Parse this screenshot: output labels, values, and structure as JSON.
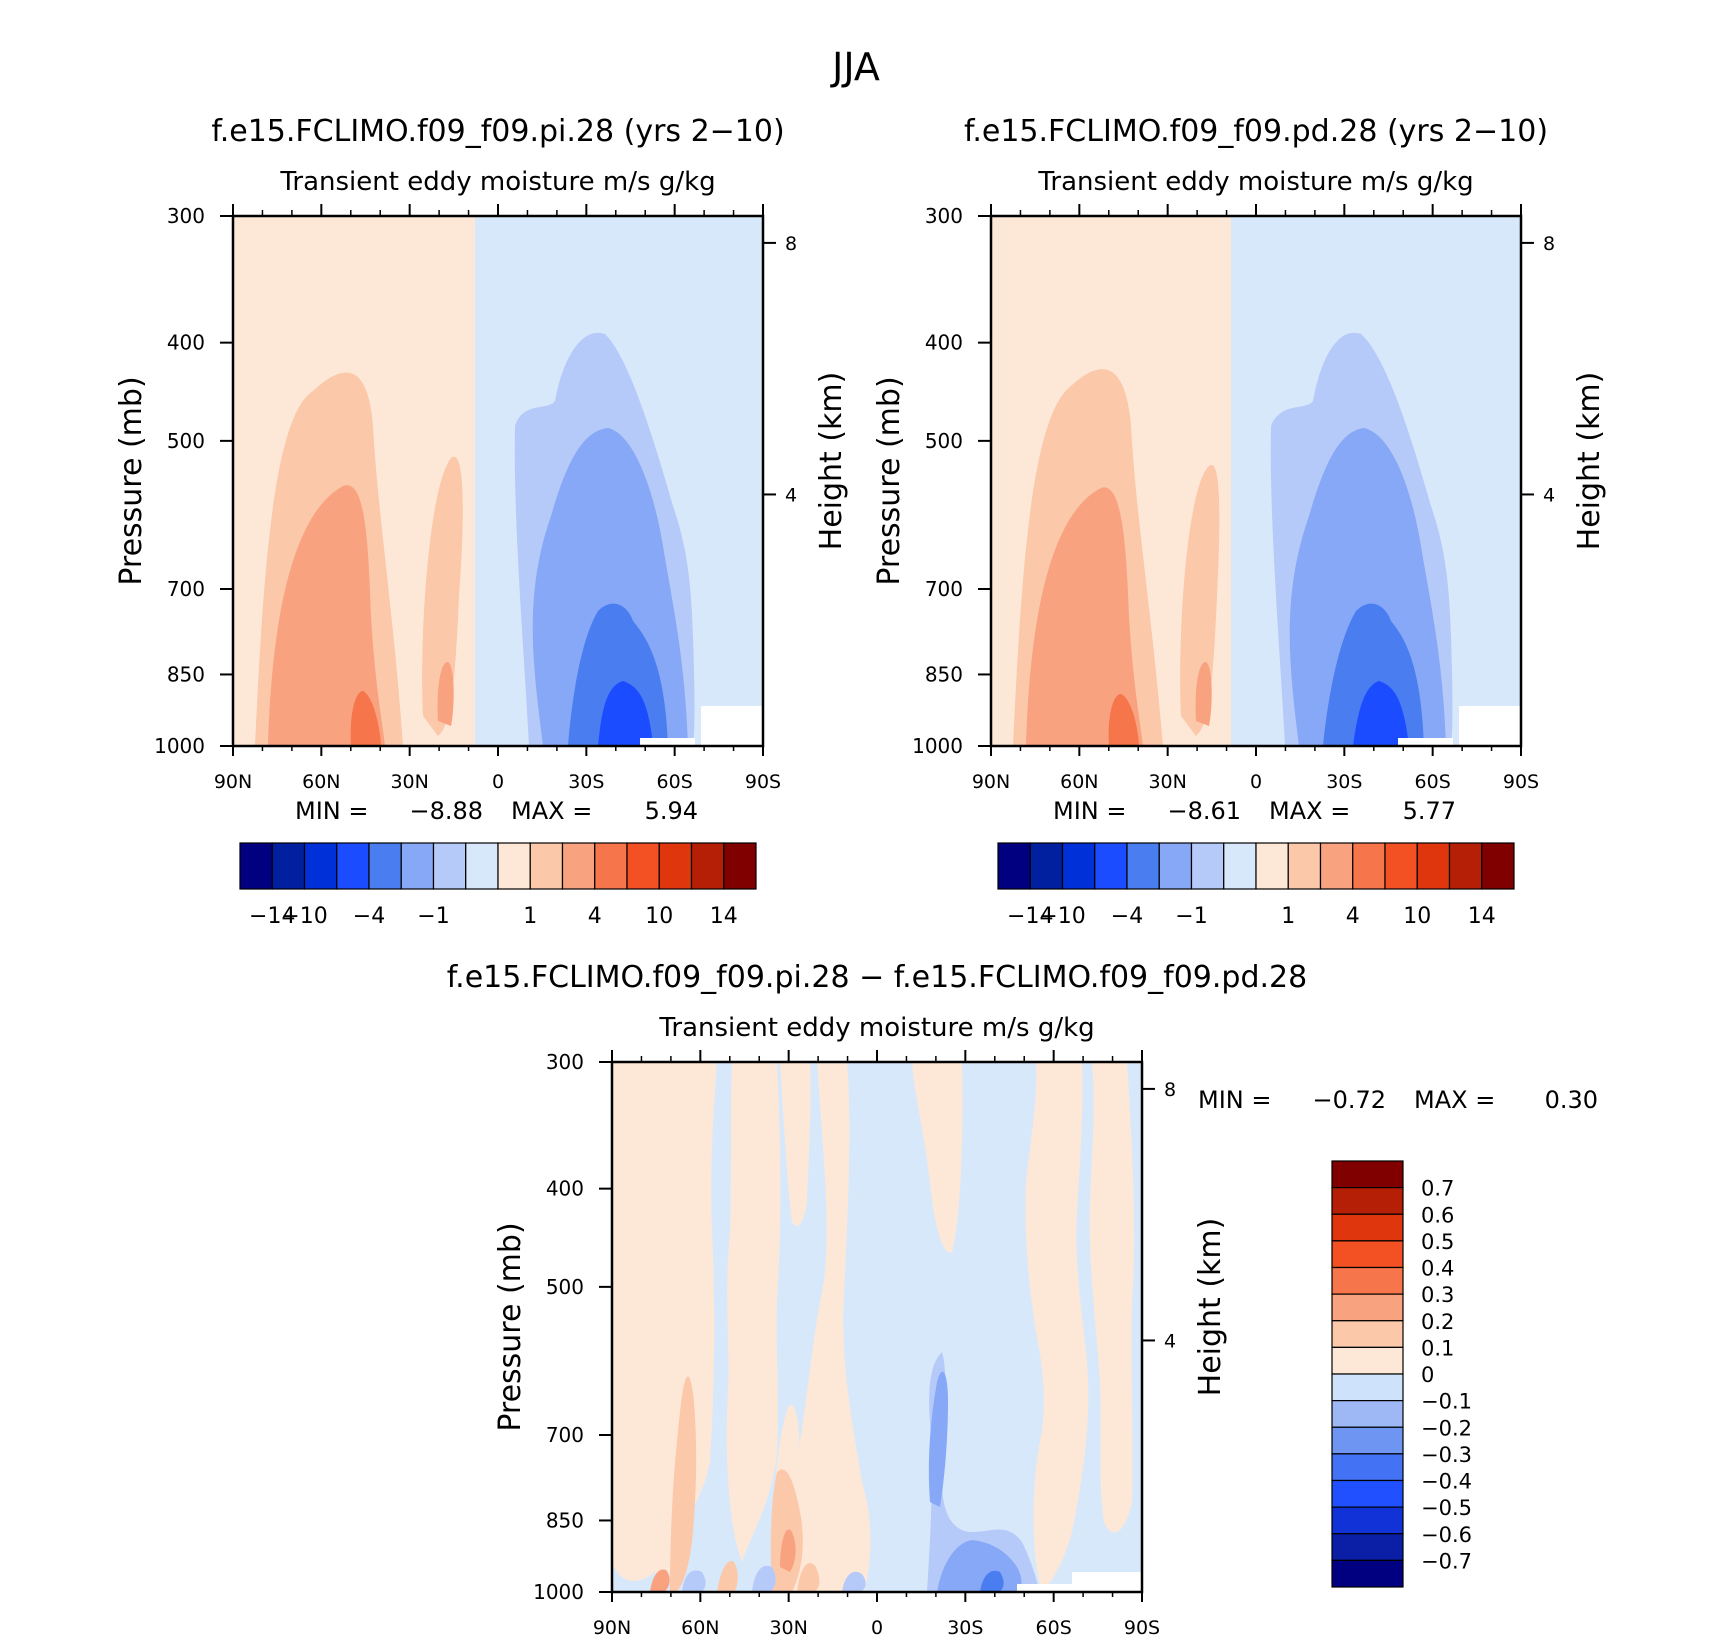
{
  "figure": {
    "title": "JJA"
  },
  "colors": {
    "main_scale": [
      "#000080",
      "#0020a0",
      "#0030d8",
      "#1c4cff",
      "#4a7df0",
      "#86a8f6",
      "#b6caf9",
      "#d8e8fb",
      "#fde8d8",
      "#fbc8aa",
      "#f8a280",
      "#f6754a",
      "#f35124",
      "#e0360e",
      "#b51f06",
      "#800000"
    ],
    "diff_scale": [
      "#000080",
      "#0a1ea6",
      "#1032d6",
      "#2050ff",
      "#4472f4",
      "#6d95f1",
      "#9eb8f5",
      "#cfe2fb",
      "#fde8d8",
      "#fbc8aa",
      "#f8a280",
      "#f6754a",
      "#f35124",
      "#e0360e",
      "#b51f06",
      "#800000"
    ]
  },
  "chart_data": [
    {
      "type": "heatmap",
      "title": "f.e15.FCLIMO.f09_f09.pi.28 (yrs 2−10)",
      "subtitle": "Transient eddy moisture m/s g/kg",
      "ylabel": "Pressure (mb)",
      "y2label": "Height (km)",
      "x_ticks": [
        "90N",
        "60N",
        "30N",
        "0",
        "30S",
        "60S",
        "90S"
      ],
      "y_ticks": [
        300,
        400,
        500,
        700,
        850,
        1000
      ],
      "y2_ticks": [
        8,
        4
      ],
      "ylim": [
        1000,
        300
      ],
      "y_scale": "log",
      "stats": {
        "min_label": "MIN =",
        "min": "−8.88",
        "max_label": "MAX =",
        "max": "5.94"
      },
      "colorbar": {
        "orientation": "horizontal",
        "labels": [
          "−14",
          "−10",
          "−4",
          "−1",
          "1",
          "4",
          "10",
          "14"
        ]
      }
    },
    {
      "type": "heatmap",
      "title": "f.e15.FCLIMO.f09_f09.pd.28 (yrs 2−10)",
      "subtitle": "Transient eddy moisture m/s g/kg",
      "ylabel": "Pressure (mb)",
      "y2label": "Height (km)",
      "x_ticks": [
        "90N",
        "60N",
        "30N",
        "0",
        "30S",
        "60S",
        "90S"
      ],
      "y_ticks": [
        300,
        400,
        500,
        700,
        850,
        1000
      ],
      "y2_ticks": [
        8,
        4
      ],
      "ylim": [
        1000,
        300
      ],
      "y_scale": "log",
      "stats": {
        "min_label": "MIN =",
        "min": "−8.61",
        "max_label": "MAX =",
        "max": "5.77"
      },
      "colorbar": {
        "orientation": "horizontal",
        "labels": [
          "−14",
          "−10",
          "−4",
          "−1",
          "1",
          "4",
          "10",
          "14"
        ]
      }
    },
    {
      "type": "heatmap",
      "title": "f.e15.FCLIMO.f09_f09.pi.28 − f.e15.FCLIMO.f09_f09.pd.28",
      "subtitle": "Transient eddy moisture m/s g/kg",
      "ylabel": "Pressure (mb)",
      "y2label": "Height (km)",
      "x_ticks": [
        "90N",
        "60N",
        "30N",
        "0",
        "30S",
        "60S",
        "90S"
      ],
      "y_ticks": [
        300,
        400,
        500,
        700,
        850,
        1000
      ],
      "y2_ticks": [
        8,
        4
      ],
      "ylim": [
        1000,
        300
      ],
      "y_scale": "log",
      "stats": {
        "min_label": "MIN =",
        "min": "−0.72",
        "max_label": "MAX =",
        "max": "0.30"
      },
      "colorbar": {
        "orientation": "vertical",
        "labels": [
          "0.7",
          "0.6",
          "0.5",
          "0.4",
          "0.3",
          "0.2",
          "0.1",
          "0",
          "−0.1",
          "−0.2",
          "−0.3",
          "−0.4",
          "−0.5",
          "−0.6",
          "−0.7"
        ]
      }
    }
  ]
}
